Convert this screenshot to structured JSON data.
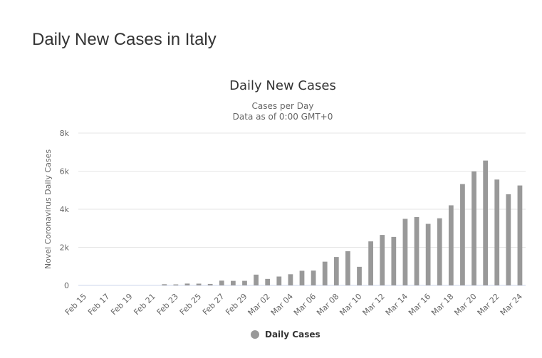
{
  "page": {
    "heading": "Daily New Cases in Italy"
  },
  "chart_data": {
    "type": "bar",
    "title": "Daily New Cases",
    "subtitle_line1": "Cases per Day",
    "subtitle_line2": "Data as of 0:00 GMT+0",
    "ylabel": "Novel Coronavirus Daily Cases",
    "xlabel": "",
    "ylim": [
      0,
      8000
    ],
    "yticks": [
      0,
      2000,
      4000,
      6000,
      8000
    ],
    "ytick_labels": [
      "0",
      "2k",
      "4k",
      "6k",
      "8k"
    ],
    "categories": [
      "Feb 15",
      "Feb 16",
      "Feb 17",
      "Feb 18",
      "Feb 19",
      "Feb 20",
      "Feb 21",
      "Feb 22",
      "Feb 23",
      "Feb 24",
      "Feb 25",
      "Feb 26",
      "Feb 27",
      "Feb 28",
      "Feb 29",
      "Mar 01",
      "Mar 02",
      "Mar 03",
      "Mar 04",
      "Mar 05",
      "Mar 06",
      "Mar 07",
      "Mar 08",
      "Mar 09",
      "Mar 10",
      "Mar 11",
      "Mar 12",
      "Mar 13",
      "Mar 14",
      "Mar 15",
      "Mar 16",
      "Mar 17",
      "Mar 18",
      "Mar 19",
      "Mar 20",
      "Mar 21",
      "Mar 22",
      "Mar 23",
      "Mar 24"
    ],
    "xtick_labels": [
      "Feb 15",
      "",
      "Feb 17",
      "",
      "Feb 19",
      "",
      "Feb 21",
      "",
      "Feb 23",
      "",
      "Feb 25",
      "",
      "Feb 27",
      "",
      "Feb 29",
      "",
      "Mar 02",
      "",
      "Mar 04",
      "",
      "Mar 06",
      "",
      "Mar 08",
      "",
      "Mar 10",
      "",
      "Mar 12",
      "",
      "Mar 14",
      "",
      "Mar 16",
      "",
      "Mar 18",
      "",
      "Mar 20",
      "",
      "Mar 22",
      "",
      "Mar 24"
    ],
    "series": [
      {
        "name": "Daily Cases",
        "color": "#999999",
        "values": [
          0,
          0,
          0,
          0,
          0,
          0,
          0,
          62,
          53,
          97,
          93,
          78,
          250,
          238,
          240,
          566,
          342,
          466,
          587,
          769,
          778,
          1247,
          1492,
          1797,
          977,
          2313,
          2651,
          2547,
          3497,
          3590,
          3233,
          3526,
          4207,
          5322,
          5986,
          6557,
          5560,
          4789,
          5249
        ]
      }
    ],
    "legend": {
      "label": "Daily Cases",
      "placement": "bottom-center"
    },
    "grid": true
  }
}
